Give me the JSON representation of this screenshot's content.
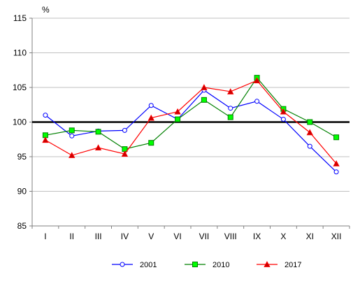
{
  "chart_data": {
    "type": "line",
    "ylabel": "%",
    "ylim": [
      85,
      115
    ],
    "yticks": [
      "85",
      "90",
      "95",
      "100",
      "105",
      "110",
      "115"
    ],
    "categories": [
      "I",
      "II",
      "III",
      "IV",
      "V",
      "VI",
      "VII",
      "VIII",
      "IX",
      "X",
      "XI",
      "XII"
    ],
    "reference_line": 100,
    "grid": true,
    "legend_position": "bottom",
    "series": [
      {
        "name": "2001",
        "color": "#0000ff",
        "marker": "circle",
        "values": [
          101.0,
          98.0,
          98.7,
          98.8,
          102.4,
          100.4,
          104.6,
          102.0,
          103.0,
          100.4,
          96.5,
          92.8
        ]
      },
      {
        "name": "2010",
        "color": "#008000",
        "marker_fill": "#00ff00",
        "marker": "square",
        "values": [
          98.1,
          98.8,
          98.6,
          96.1,
          97.0,
          100.4,
          103.2,
          100.7,
          106.4,
          101.9,
          100.0,
          97.8
        ]
      },
      {
        "name": "2017",
        "color": "#ff0000",
        "marker_fill": "#cc0000",
        "marker": "triangle",
        "values": [
          97.4,
          95.2,
          96.3,
          95.4,
          100.6,
          101.5,
          105.0,
          104.4,
          106.0,
          101.5,
          98.5,
          94.0
        ]
      }
    ]
  }
}
